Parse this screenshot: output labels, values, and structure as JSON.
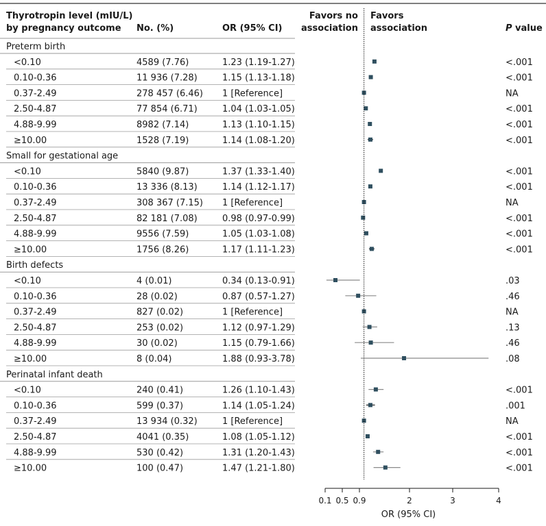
{
  "header": {
    "col_category_line1": "Thyrotropin level (mIU/L)",
    "col_category_line2": "by pregnancy outcome",
    "col_count": "No. (%)",
    "col_or": "OR (95% CI)",
    "favors_no_line1": "Favors no",
    "favors_no_line2": "association",
    "favors_line1": "Favors",
    "favors_line2": "association",
    "col_pvalue_italic": "P",
    "col_pvalue_rest": " value"
  },
  "chart_data": {
    "type": "forest",
    "xlabel": "OR (95% CI)",
    "x_ticks": [
      0.1,
      0.5,
      0.9,
      2,
      3,
      4
    ],
    "x_tick_labels": [
      "0.1",
      "0.5",
      "0.9",
      "2",
      "3",
      "4"
    ],
    "xlim": [
      0.1,
      4
    ],
    "reference_line": 1,
    "groups": [
      {
        "name": "Preterm birth",
        "rows": [
          {
            "label": "<0.10",
            "count": "4589 (7.76)",
            "or_text": "1.23 (1.19-1.27)",
            "or": 1.23,
            "lo": 1.19,
            "hi": 1.27,
            "p": "<.001"
          },
          {
            "label": "0.10-0.36",
            "count": "11 936 (7.28)",
            "or_text": "1.15 (1.13-1.18)",
            "or": 1.15,
            "lo": 1.13,
            "hi": 1.18,
            "p": "<.001"
          },
          {
            "label": "0.37-2.49",
            "count": "278 457 (6.46)",
            "or_text": "1 [Reference]",
            "or": 1.0,
            "lo": 1.0,
            "hi": 1.0,
            "p": "NA"
          },
          {
            "label": "2.50-4.87",
            "count": "77 854 (6.71)",
            "or_text": "1.04 (1.03-1.05)",
            "or": 1.04,
            "lo": 1.03,
            "hi": 1.05,
            "p": "<.001"
          },
          {
            "label": "4.88-9.99",
            "count": "8982 (7.14)",
            "or_text": "1.13 (1.10-1.15)",
            "or": 1.13,
            "lo": 1.1,
            "hi": 1.15,
            "p": "<.001"
          },
          {
            "label": "≥10.00",
            "count": "1528 (7.19)",
            "or_text": "1.14 (1.08-1.20)",
            "or": 1.14,
            "lo": 1.08,
            "hi": 1.2,
            "p": "<.001"
          }
        ]
      },
      {
        "name": "Small for gestational age",
        "rows": [
          {
            "label": "<0.10",
            "count": "5840 (9.87)",
            "or_text": "1.37 (1.33-1.40)",
            "or": 1.37,
            "lo": 1.33,
            "hi": 1.4,
            "p": "<.001"
          },
          {
            "label": "0.10-0.36",
            "count": "13 336 (8.13)",
            "or_text": "1.14 (1.12-1.17)",
            "or": 1.14,
            "lo": 1.12,
            "hi": 1.17,
            "p": "<.001"
          },
          {
            "label": "0.37-2.49",
            "count": "308 367 (7.15)",
            "or_text": "1 [Reference]",
            "or": 1.0,
            "lo": 1.0,
            "hi": 1.0,
            "p": "NA"
          },
          {
            "label": "2.50-4.87",
            "count": "82 181 (7.08)",
            "or_text": "0.98 (0.97-0.99)",
            "or": 0.98,
            "lo": 0.97,
            "hi": 0.99,
            "p": "<.001"
          },
          {
            "label": "4.88-9.99",
            "count": "9556 (7.59)",
            "or_text": "1.05 (1.03-1.08)",
            "or": 1.05,
            "lo": 1.03,
            "hi": 1.08,
            "p": "<.001"
          },
          {
            "label": "≥10.00",
            "count": "1756 (8.26)",
            "or_text": "1.17 (1.11-1.23)",
            "or": 1.17,
            "lo": 1.11,
            "hi": 1.23,
            "p": "<.001"
          }
        ]
      },
      {
        "name": "Birth defects",
        "rows": [
          {
            "label": "<0.10",
            "count": "4 (0.01)",
            "or_text": "0.34 (0.13-0.91)",
            "or": 0.34,
            "lo": 0.13,
            "hi": 0.91,
            "p": ".03"
          },
          {
            "label": "0.10-0.36",
            "count": "28 (0.02)",
            "or_text": "0.87 (0.57-1.27)",
            "or": 0.87,
            "lo": 0.57,
            "hi": 1.27,
            "p": ".46"
          },
          {
            "label": "0.37-2.49",
            "count": "827 (0.02)",
            "or_text": "1 [Reference]",
            "or": 1.0,
            "lo": 1.0,
            "hi": 1.0,
            "p": "NA"
          },
          {
            "label": "2.50-4.87",
            "count": "253 (0.02)",
            "or_text": "1.12 (0.97-1.29)",
            "or": 1.12,
            "lo": 0.97,
            "hi": 1.29,
            "p": ".13"
          },
          {
            "label": "4.88-9.99",
            "count": "30 (0.02)",
            "or_text": "1.15 (0.79-1.66)",
            "or": 1.15,
            "lo": 0.79,
            "hi": 1.66,
            "p": ".46"
          },
          {
            "label": "≥10.00",
            "count": "8 (0.04)",
            "or_text": "1.88 (0.93-3.78)",
            "or": 1.88,
            "lo": 0.93,
            "hi": 3.78,
            "p": ".08"
          }
        ]
      },
      {
        "name": "Perinatal infant death",
        "rows": [
          {
            "label": "<0.10",
            "count": "240 (0.41)",
            "or_text": "1.26 (1.10-1.43)",
            "or": 1.26,
            "lo": 1.1,
            "hi": 1.43,
            "p": "<.001"
          },
          {
            "label": "0.10-0.36",
            "count": "599 (0.37)",
            "or_text": "1.14 (1.05-1.24)",
            "or": 1.14,
            "lo": 1.05,
            "hi": 1.24,
            "p": ".001"
          },
          {
            "label": "0.37-2.49",
            "count": "13 934 (0.32)",
            "or_text": "1 [Reference]",
            "or": 1.0,
            "lo": 1.0,
            "hi": 1.0,
            "p": "NA"
          },
          {
            "label": "2.50-4.87",
            "count": "4041 (0.35)",
            "or_text": "1.08 (1.05-1.12)",
            "or": 1.08,
            "lo": 1.05,
            "hi": 1.12,
            "p": "<.001"
          },
          {
            "label": "4.88-9.99",
            "count": "530 (0.42)",
            "or_text": "1.31 (1.20-1.43)",
            "or": 1.31,
            "lo": 1.2,
            "hi": 1.43,
            "p": "<.001"
          },
          {
            "label": "≥10.00",
            "count": "100 (0.47)",
            "or_text": "1.47 (1.21-1.80)",
            "or": 1.47,
            "lo": 1.21,
            "hi": 1.8,
            "p": "<.001"
          }
        ]
      }
    ]
  },
  "colors": {
    "marker": "#2f4f5f",
    "ci_line": "#1a1a1a",
    "ci_line_wide": "#8a8a8a",
    "rule": "#9a9a9a",
    "top_rule": "#555555",
    "text": "#1a1a1a"
  }
}
